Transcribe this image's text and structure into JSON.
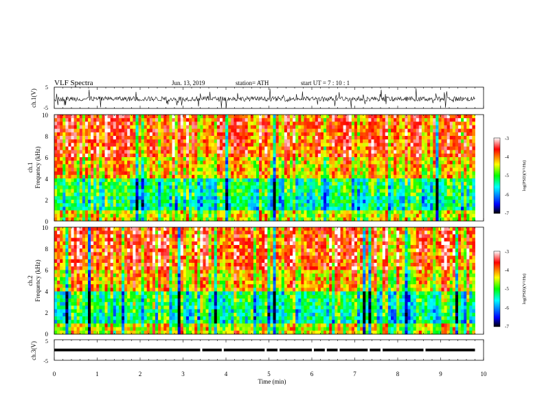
{
  "header": {
    "title": "VLF Spectra",
    "date": "Jun. 13, 2019",
    "station": "station= ATH",
    "start_ut": "start  UT  =   7  : 10 : 1"
  },
  "chart_data": [
    {
      "type": "line",
      "panel": "ch1-voltage",
      "ylabel": "ch.1(V)",
      "ytick_labels": [
        "5",
        "-5"
      ],
      "ylim": [
        -5,
        5
      ],
      "xlim": [
        0,
        10
      ],
      "x_extent": 9.8,
      "description_values": {
        "baseline": -0.5,
        "typical_range": [
          -3,
          3
        ]
      }
    },
    {
      "type": "heatmap",
      "panel": "ch1-spectrogram",
      "ylabel": "ch.1",
      "ylabel2": "Frequency (kHz)",
      "ytick_labels": [
        "10",
        "8",
        "6",
        "4",
        "2",
        "0"
      ],
      "ylim": [
        0,
        10
      ],
      "xlim": [
        0,
        10
      ],
      "x_extent": 9.8,
      "colorbar": {
        "label": "log(PSD)(V²/Hz)",
        "tick_labels": [
          "-3",
          "-4",
          "-5",
          "-6",
          "-7"
        ],
        "range": [
          -7,
          -3
        ]
      }
    },
    {
      "type": "heatmap",
      "panel": "ch2-spectrogram",
      "ylabel": "ch.2",
      "ylabel2": "Frequency (kHz)",
      "ytick_labels": [
        "10",
        "8",
        "6",
        "4",
        "2",
        "0"
      ],
      "ylim": [
        0,
        10
      ],
      "xlim": [
        0,
        10
      ],
      "x_extent": 9.8,
      "colorbar": {
        "label": "log(PSD)(V²/Hz)",
        "tick_labels": [
          "-3",
          "-4",
          "-5",
          "-6",
          "-7"
        ],
        "range": [
          -7,
          -3
        ]
      }
    },
    {
      "type": "line",
      "panel": "ch3-voltage",
      "ylabel": "ch.3(V)",
      "ytick_labels": [
        "5",
        "-5"
      ],
      "ylim": [
        -5,
        5
      ],
      "xlim": [
        0,
        10
      ],
      "x_extent": 9.8,
      "level": 0
    }
  ],
  "xaxis": {
    "label": "Time  (min)",
    "tick_labels": [
      "0",
      "1",
      "2",
      "3",
      "4",
      "5",
      "6",
      "7",
      "8",
      "9",
      "10"
    ]
  },
  "colors": {
    "low": "#000000",
    "blue": "#0000ff",
    "cyan": "#00ffff",
    "green": "#00ff00",
    "yellow": "#ffff00",
    "red": "#ff0000",
    "high": "#ffffff"
  }
}
